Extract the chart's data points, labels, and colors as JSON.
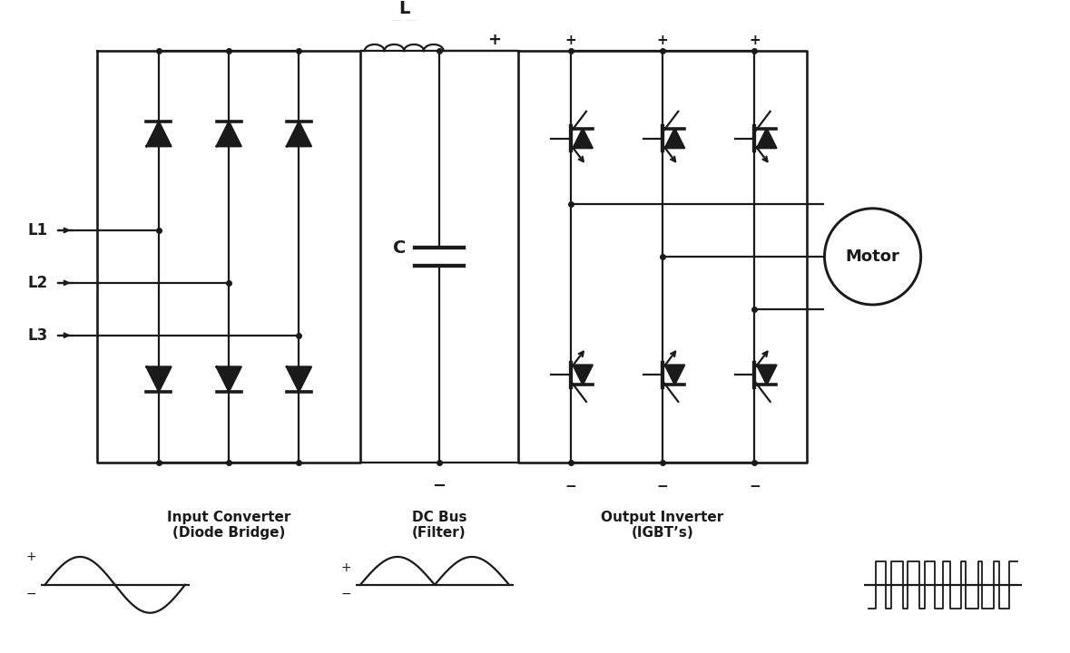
{
  "bg_color": "#ffffff",
  "line_color": "#1a1a1a",
  "line_width": 1.6,
  "labels": {
    "L1": "L1",
    "L2": "L2",
    "L3": "L3",
    "L_label": "L",
    "C_label": "C",
    "motor": "Motor",
    "input_converter": "Input Converter\n(Diode Bridge)",
    "dc_bus": "DC Bus\n(Filter)",
    "output_inverter": "Output Inverter\n(IGBT’s)"
  },
  "figsize": [
    11.79,
    7.2
  ],
  "dpi": 100
}
